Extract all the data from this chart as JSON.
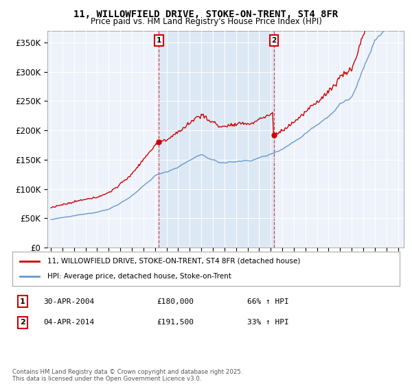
{
  "title": "11, WILLOWFIELD DRIVE, STOKE-ON-TRENT, ST4 8FR",
  "subtitle": "Price paid vs. HM Land Registry's House Price Index (HPI)",
  "ylabel_ticks": [
    "£0",
    "£50K",
    "£100K",
    "£150K",
    "£200K",
    "£250K",
    "£300K",
    "£350K"
  ],
  "ytick_vals": [
    0,
    50000,
    100000,
    150000,
    200000,
    250000,
    300000,
    350000
  ],
  "ylim": [
    0,
    370000
  ],
  "xlim_start": 1994.7,
  "xlim_end": 2025.5,
  "sale1_date": 2004.33,
  "sale1_price": 180000,
  "sale2_date": 2014.27,
  "sale2_price": 191500,
  "line_color_property": "#cc0000",
  "line_color_hpi": "#6699cc",
  "vline_color": "#cc4444",
  "shade_color": "#dde8f5",
  "background_color": "#eef2fa",
  "legend_label_property": "11, WILLOWFIELD DRIVE, STOKE-ON-TRENT, ST4 8FR (detached house)",
  "legend_label_hpi": "HPI: Average price, detached house, Stoke-on-Trent",
  "note1_box": "1",
  "note1_date": "30-APR-2004",
  "note1_price": "£180,000",
  "note1_hpi": "66% ↑ HPI",
  "note2_box": "2",
  "note2_date": "04-APR-2014",
  "note2_price": "£191,500",
  "note2_hpi": "33% ↑ HPI",
  "footer": "Contains HM Land Registry data © Crown copyright and database right 2025.\nThis data is licensed under the Open Government Licence v3.0."
}
